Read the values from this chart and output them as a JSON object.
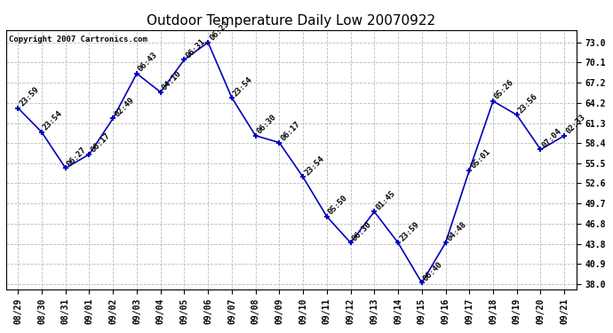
{
  "title": "Outdoor Temperature Daily Low 20070922",
  "copyright": "Copyright 2007 Cartronics.com",
  "dates": [
    "08/29",
    "08/30",
    "08/31",
    "09/01",
    "09/02",
    "09/03",
    "09/04",
    "09/05",
    "09/06",
    "09/07",
    "09/08",
    "09/09",
    "09/10",
    "09/11",
    "09/12",
    "09/13",
    "09/14",
    "09/15",
    "09/16",
    "09/17",
    "09/18",
    "09/19",
    "09/20",
    "09/21"
  ],
  "temps": [
    63.5,
    60.0,
    54.8,
    56.8,
    62.0,
    68.5,
    65.8,
    70.5,
    73.0,
    65.0,
    59.5,
    58.5,
    53.5,
    47.8,
    44.0,
    48.5,
    44.0,
    38.2,
    44.0,
    54.5,
    64.5,
    62.5,
    57.5,
    59.5
  ],
  "times": [
    "23:59",
    "23:54",
    "06:27",
    "06:17",
    "02:49",
    "06:43",
    "04:10",
    "06:31",
    "06:23",
    "23:54",
    "06:30",
    "06:17",
    "23:54",
    "05:50",
    "06:30",
    "01:45",
    "23:59",
    "06:40",
    "04:48",
    "05:01",
    "05:26",
    "23:56",
    "07:04",
    "02:33"
  ],
  "line_color": "#0000bb",
  "marker_color": "#0000bb",
  "bg_color": "#ffffff",
  "plot_bg_color": "#ffffff",
  "grid_color": "#bbbbbb",
  "title_fontsize": 11,
  "copyright_fontsize": 6.5,
  "label_fontsize": 6.5,
  "tick_fontsize": 7,
  "yticks": [
    38.0,
    40.9,
    43.8,
    46.8,
    49.7,
    52.6,
    55.5,
    58.4,
    61.3,
    64.2,
    67.2,
    70.1,
    73.0
  ],
  "ylim": [
    37.2,
    74.8
  ]
}
